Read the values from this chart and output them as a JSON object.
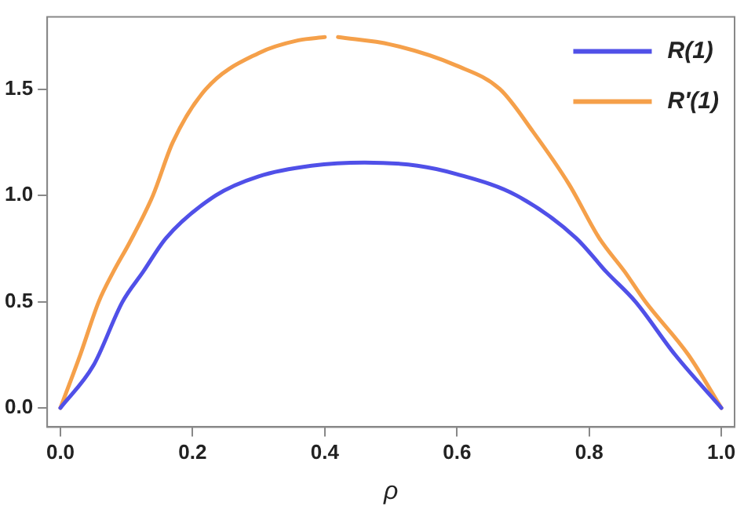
{
  "chart_data": {
    "type": "line",
    "xlabel": "ρ",
    "xlim": [
      -0.02,
      1.02
    ],
    "ylim": [
      -0.09,
      1.84
    ],
    "xticks": [
      {
        "value": 0,
        "label": "0.0"
      },
      {
        "value": 0.2,
        "label": "0.2"
      },
      {
        "value": 0.4,
        "label": "0.4"
      },
      {
        "value": 0.6,
        "label": "0.6"
      },
      {
        "value": 0.8,
        "label": "0.8"
      },
      {
        "value": 1,
        "label": "1.0"
      }
    ],
    "yticks": [
      {
        "value": 0,
        "label": "0.0"
      },
      {
        "value": 0.5,
        "label": "0.5"
      },
      {
        "value": 1,
        "label": "1.0"
      },
      {
        "value": 1.5,
        "label": "1.5"
      }
    ],
    "grid": false,
    "legend": "top right",
    "marker": "none",
    "line_style": "solid",
    "series": [
      {
        "name": "R(1)",
        "color": "#5050e8",
        "x": [
          0,
          0.05,
          0.094,
          0.125,
          0.16,
          0.235,
          0.3,
          0.38,
          0.46,
          0.54,
          0.6,
          0.69,
          0.78,
          0.826,
          0.87,
          0.93,
          1
        ],
        "values": [
          0,
          0.2,
          0.5,
          0.64,
          0.8,
          1.0,
          1.09,
          1.14,
          1.155,
          1.14,
          1.1,
          1.0,
          0.8,
          0.64,
          0.5,
          0.25,
          0
        ]
      },
      {
        "name": "R′(1)",
        "color": "#f5a04a",
        "x": [
          0,
          0.03,
          0.058,
          0.08,
          0.105,
          0.14,
          0.17,
          0.22,
          0.3,
          0.36,
          0.4,
          0.41,
          0.42,
          0.5,
          0.6,
          0.665,
          0.715,
          0.77,
          0.815,
          0.854,
          0.885,
          0.95,
          1
        ],
        "values": [
          0,
          0.25,
          0.5,
          0.64,
          0.78,
          1.0,
          1.25,
          1.5,
          1.67,
          1.73,
          1.745,
          null,
          1.745,
          1.71,
          1.61,
          1.5,
          1.3,
          1.05,
          0.8,
          0.64,
          0.5,
          0.25,
          0
        ]
      }
    ]
  }
}
